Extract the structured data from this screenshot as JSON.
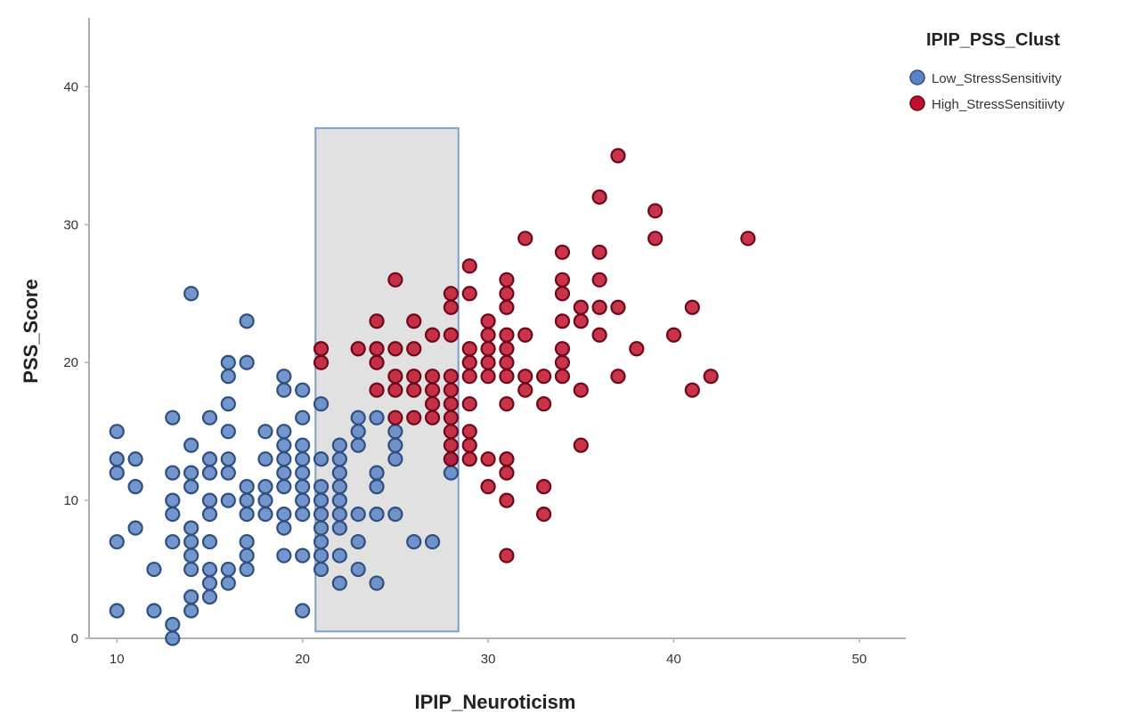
{
  "chart_data": {
    "type": "scatter",
    "xlabel": "IPIP_Neuroticism",
    "ylabel": "PSS_Score",
    "xlim": [
      8.5,
      52.5
    ],
    "ylim": [
      0,
      45
    ],
    "x_ticks": [
      10,
      20,
      30,
      40,
      50
    ],
    "y_ticks": [
      0,
      10,
      20,
      30,
      40
    ],
    "grid": false,
    "legend": {
      "title": "IPIP_PSS_Clust",
      "placement": "top-right",
      "entries": [
        "Low_StressSensitivity",
        "High_StressSensitiivty"
      ]
    },
    "highlight_box": {
      "x0": 20.7,
      "x1": 28.4,
      "y0": 0.5,
      "y1": 37
    },
    "colors": {
      "low": "#5b84c4",
      "high": "#c0102c",
      "box_fill": "#d9d9d9",
      "box_stroke": "#7f9ed0",
      "axis": "#b0b0b0"
    },
    "series": [
      {
        "name": "Low_StressSensitivity",
        "points": [
          [
            10,
            2
          ],
          [
            10,
            7
          ],
          [
            10,
            12
          ],
          [
            10,
            13
          ],
          [
            10,
            15
          ],
          [
            11,
            8
          ],
          [
            11,
            11
          ],
          [
            11,
            13
          ],
          [
            12,
            2
          ],
          [
            12,
            5
          ],
          [
            13,
            0
          ],
          [
            13,
            1
          ],
          [
            13,
            7
          ],
          [
            13,
            9
          ],
          [
            13,
            10
          ],
          [
            13,
            12
          ],
          [
            13,
            16
          ],
          [
            14,
            2
          ],
          [
            14,
            3
          ],
          [
            14,
            5
          ],
          [
            14,
            6
          ],
          [
            14,
            7
          ],
          [
            14,
            8
          ],
          [
            14,
            11
          ],
          [
            14,
            12
          ],
          [
            14,
            14
          ],
          [
            14,
            25
          ],
          [
            15,
            3
          ],
          [
            15,
            4
          ],
          [
            15,
            5
          ],
          [
            15,
            7
          ],
          [
            15,
            9
          ],
          [
            15,
            10
          ],
          [
            15,
            12
          ],
          [
            15,
            13
          ],
          [
            15,
            16
          ],
          [
            16,
            4
          ],
          [
            16,
            5
          ],
          [
            16,
            10
          ],
          [
            16,
            12
          ],
          [
            16,
            13
          ],
          [
            16,
            15
          ],
          [
            16,
            17
          ],
          [
            16,
            19
          ],
          [
            16,
            20
          ],
          [
            17,
            5
          ],
          [
            17,
            6
          ],
          [
            17,
            7
          ],
          [
            17,
            9
          ],
          [
            17,
            10
          ],
          [
            17,
            11
          ],
          [
            17,
            20
          ],
          [
            17,
            23
          ],
          [
            18,
            9
          ],
          [
            18,
            10
          ],
          [
            18,
            11
          ],
          [
            18,
            13
          ],
          [
            18,
            15
          ],
          [
            19,
            6
          ],
          [
            19,
            8
          ],
          [
            19,
            9
          ],
          [
            19,
            11
          ],
          [
            19,
            12
          ],
          [
            19,
            13
          ],
          [
            19,
            14
          ],
          [
            19,
            15
          ],
          [
            19,
            18
          ],
          [
            19,
            19
          ],
          [
            20,
            2
          ],
          [
            20,
            6
          ],
          [
            20,
            9
          ],
          [
            20,
            10
          ],
          [
            20,
            11
          ],
          [
            20,
            12
          ],
          [
            20,
            13
          ],
          [
            20,
            14
          ],
          [
            20,
            16
          ],
          [
            20,
            18
          ],
          [
            21,
            5
          ],
          [
            21,
            6
          ],
          [
            21,
            7
          ],
          [
            21,
            8
          ],
          [
            21,
            9
          ],
          [
            21,
            10
          ],
          [
            21,
            11
          ],
          [
            21,
            13
          ],
          [
            21,
            17
          ],
          [
            22,
            4
          ],
          [
            22,
            6
          ],
          [
            22,
            8
          ],
          [
            22,
            9
          ],
          [
            22,
            10
          ],
          [
            22,
            11
          ],
          [
            22,
            12
          ],
          [
            22,
            13
          ],
          [
            22,
            14
          ],
          [
            23,
            5
          ],
          [
            23,
            7
          ],
          [
            23,
            9
          ],
          [
            23,
            14
          ],
          [
            23,
            15
          ],
          [
            23,
            16
          ],
          [
            24,
            4
          ],
          [
            24,
            9
          ],
          [
            24,
            11
          ],
          [
            24,
            12
          ],
          [
            24,
            16
          ],
          [
            25,
            9
          ],
          [
            25,
            13
          ],
          [
            25,
            14
          ],
          [
            25,
            15
          ],
          [
            26,
            7
          ],
          [
            27,
            7
          ],
          [
            28,
            12
          ],
          [
            28,
            13
          ]
        ]
      },
      {
        "name": "High_StressSensitiivty",
        "points": [
          [
            21,
            20
          ],
          [
            21,
            21
          ],
          [
            23,
            21
          ],
          [
            24,
            18
          ],
          [
            24,
            20
          ],
          [
            24,
            21
          ],
          [
            24,
            23
          ],
          [
            25,
            16
          ],
          [
            25,
            18
          ],
          [
            25,
            19
          ],
          [
            25,
            21
          ],
          [
            25,
            26
          ],
          [
            26,
            16
          ],
          [
            26,
            18
          ],
          [
            26,
            19
          ],
          [
            26,
            21
          ],
          [
            26,
            23
          ],
          [
            27,
            16
          ],
          [
            27,
            17
          ],
          [
            27,
            18
          ],
          [
            27,
            19
          ],
          [
            27,
            22
          ],
          [
            28,
            13
          ],
          [
            28,
            14
          ],
          [
            28,
            15
          ],
          [
            28,
            16
          ],
          [
            28,
            17
          ],
          [
            28,
            18
          ],
          [
            28,
            19
          ],
          [
            28,
            22
          ],
          [
            28,
            24
          ],
          [
            28,
            25
          ],
          [
            29,
            13
          ],
          [
            29,
            14
          ],
          [
            29,
            15
          ],
          [
            29,
            17
          ],
          [
            29,
            19
          ],
          [
            29,
            20
          ],
          [
            29,
            21
          ],
          [
            29,
            25
          ],
          [
            29,
            27
          ],
          [
            30,
            11
          ],
          [
            30,
            13
          ],
          [
            30,
            19
          ],
          [
            30,
            20
          ],
          [
            30,
            21
          ],
          [
            30,
            22
          ],
          [
            30,
            23
          ],
          [
            31,
            6
          ],
          [
            31,
            10
          ],
          [
            31,
            12
          ],
          [
            31,
            13
          ],
          [
            31,
            17
          ],
          [
            31,
            19
          ],
          [
            31,
            20
          ],
          [
            31,
            21
          ],
          [
            31,
            22
          ],
          [
            31,
            24
          ],
          [
            31,
            25
          ],
          [
            31,
            26
          ],
          [
            32,
            18
          ],
          [
            32,
            19
          ],
          [
            32,
            22
          ],
          [
            32,
            29
          ],
          [
            33,
            9
          ],
          [
            33,
            11
          ],
          [
            33,
            17
          ],
          [
            33,
            19
          ],
          [
            34,
            19
          ],
          [
            34,
            20
          ],
          [
            34,
            21
          ],
          [
            34,
            23
          ],
          [
            34,
            25
          ],
          [
            34,
            26
          ],
          [
            34,
            28
          ],
          [
            35,
            14
          ],
          [
            35,
            18
          ],
          [
            35,
            23
          ],
          [
            35,
            24
          ],
          [
            36,
            22
          ],
          [
            36,
            24
          ],
          [
            36,
            26
          ],
          [
            36,
            28
          ],
          [
            36,
            32
          ],
          [
            37,
            19
          ],
          [
            37,
            24
          ],
          [
            37,
            35
          ],
          [
            38,
            21
          ],
          [
            39,
            29
          ],
          [
            39,
            31
          ],
          [
            40,
            22
          ],
          [
            41,
            18
          ],
          [
            41,
            24
          ],
          [
            42,
            19
          ],
          [
            44,
            29
          ]
        ]
      }
    ]
  }
}
